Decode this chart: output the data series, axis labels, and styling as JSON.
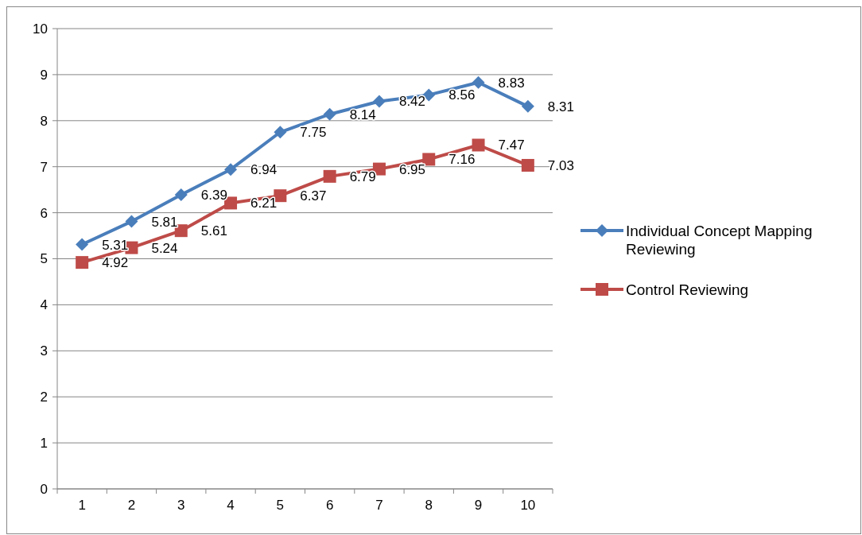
{
  "chart_data": {
    "type": "line",
    "categories": [
      "1",
      "2",
      "3",
      "4",
      "5",
      "6",
      "7",
      "8",
      "9",
      "10"
    ],
    "series": [
      {
        "name": "Individual Concept Mapping Reviewing",
        "color": "#4a7ebb",
        "marker": "diamond",
        "values": [
          5.31,
          5.81,
          6.39,
          6.94,
          7.75,
          8.14,
          8.42,
          8.56,
          8.83,
          8.31
        ]
      },
      {
        "name": "Control Reviewing",
        "color": "#be4b48",
        "marker": "square",
        "values": [
          4.92,
          5.24,
          5.61,
          6.21,
          6.37,
          6.79,
          6.95,
          7.16,
          7.47,
          7.03
        ]
      }
    ],
    "ylim": [
      0,
      10
    ],
    "yticks": [
      0,
      1,
      2,
      3,
      4,
      5,
      6,
      7,
      8,
      9,
      10
    ],
    "grid": "y",
    "legend": "right",
    "data_labels": true
  }
}
